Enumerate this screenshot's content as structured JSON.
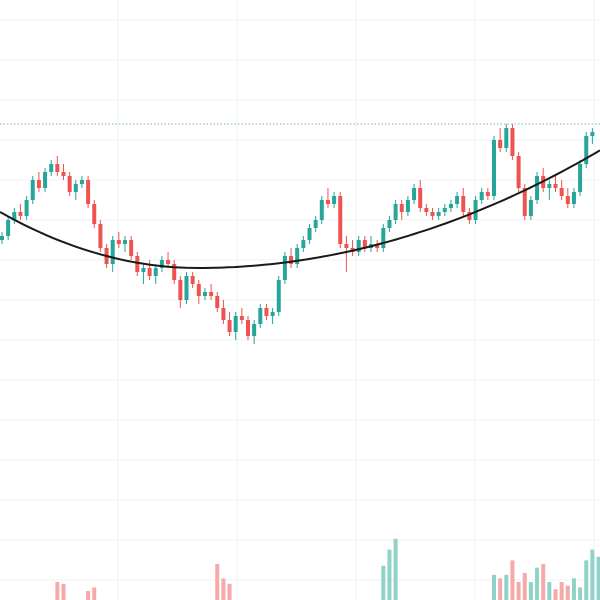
{
  "chart_data": {
    "type": "candlestick",
    "grid": true,
    "colors": {
      "up": "#26a69a",
      "down": "#ef5350",
      "volume_up": "#8fd3c8",
      "volume_down": "#f5a9a8",
      "curve": "#1a1a1a",
      "resistance": "#7fb3c4",
      "grid": "#eef0f3"
    },
    "ylim": [
      0,
      100
    ],
    "volume_ylim": [
      0,
      100
    ],
    "resistance_level": 74,
    "cup_curve": {
      "x": [
        0,
        33,
        100
      ],
      "y": [
        52,
        38,
        67.4
      ]
    },
    "candles": [
      [
        45,
        47,
        44,
        46
      ],
      [
        46,
        51,
        45,
        50
      ],
      [
        50,
        53,
        49,
        52
      ],
      [
        52,
        54,
        50,
        51
      ],
      [
        51,
        56,
        50,
        55
      ],
      [
        55,
        61,
        54,
        60
      ],
      [
        60,
        62,
        57,
        58
      ],
      [
        58,
        63,
        57,
        62
      ],
      [
        62,
        65,
        61,
        64
      ],
      [
        64,
        66,
        61,
        62
      ],
      [
        62,
        64,
        60,
        61
      ],
      [
        61,
        62,
        56,
        57
      ],
      [
        57,
        60,
        55,
        59
      ],
      [
        59,
        61,
        58,
        60
      ],
      [
        60,
        61,
        53,
        54
      ],
      [
        54,
        55,
        48,
        49
      ],
      [
        49,
        50,
        42,
        43
      ],
      [
        43,
        44,
        38,
        39
      ],
      [
        39,
        46,
        37,
        45
      ],
      [
        45,
        47,
        43,
        44
      ],
      [
        44,
        46,
        42,
        45
      ],
      [
        45,
        46,
        40,
        41
      ],
      [
        41,
        42,
        36,
        37
      ],
      [
        37,
        39,
        34,
        38
      ],
      [
        38,
        40,
        35,
        36
      ],
      [
        36,
        39,
        34,
        38
      ],
      [
        38,
        41,
        37,
        40
      ],
      [
        40,
        42,
        38,
        39
      ],
      [
        39,
        40,
        34,
        35
      ],
      [
        35,
        36,
        28,
        30
      ],
      [
        30,
        37,
        29,
        36
      ],
      [
        36,
        37,
        33,
        34
      ],
      [
        34,
        35,
        29,
        31
      ],
      [
        31,
        33,
        30,
        32
      ],
      [
        32,
        34,
        30,
        31
      ],
      [
        31,
        32,
        27,
        28
      ],
      [
        28,
        30,
        24,
        25
      ],
      [
        25,
        27,
        21,
        22
      ],
      [
        22,
        27,
        20,
        26
      ],
      [
        26,
        28,
        24,
        25
      ],
      [
        25,
        26,
        20,
        21
      ],
      [
        21,
        25,
        19,
        24
      ],
      [
        24,
        29,
        23,
        28
      ],
      [
        28,
        29,
        25,
        26
      ],
      [
        26,
        28,
        24,
        27
      ],
      [
        27,
        36,
        26,
        35
      ],
      [
        35,
        42,
        34,
        41
      ],
      [
        41,
        43,
        38,
        39
      ],
      [
        39,
        44,
        38,
        43
      ],
      [
        43,
        46,
        42,
        45
      ],
      [
        45,
        49,
        44,
        48
      ],
      [
        48,
        51,
        47,
        50
      ],
      [
        50,
        56,
        49,
        55
      ],
      [
        55,
        58,
        53,
        54
      ],
      [
        54,
        57,
        53,
        56
      ],
      [
        56,
        57,
        43,
        44
      ],
      [
        44,
        46,
        37,
        43
      ],
      [
        43,
        45,
        41,
        42
      ],
      [
        42,
        46,
        41,
        45
      ],
      [
        45,
        46,
        42,
        43
      ],
      [
        43,
        46,
        42,
        44
      ],
      [
        44,
        45,
        42,
        43
      ],
      [
        43,
        49,
        42,
        48
      ],
      [
        48,
        51,
        47,
        50
      ],
      [
        50,
        55,
        49,
        54
      ],
      [
        54,
        55,
        50,
        52
      ],
      [
        52,
        56,
        51,
        55
      ],
      [
        55,
        59,
        54,
        58
      ],
      [
        58,
        60,
        52,
        53
      ],
      [
        53,
        54,
        51,
        52
      ],
      [
        52,
        53,
        50,
        51
      ],
      [
        51,
        53,
        50,
        52
      ],
      [
        52,
        54,
        51,
        53
      ],
      [
        53,
        55,
        52,
        54
      ],
      [
        54,
        57,
        53,
        56
      ],
      [
        56,
        58,
        51,
        52
      ],
      [
        52,
        53,
        49,
        50
      ],
      [
        50,
        56,
        49,
        55
      ],
      [
        55,
        58,
        54,
        57
      ],
      [
        57,
        58,
        55,
        56
      ],
      [
        56,
        71,
        55,
        70
      ],
      [
        70,
        73,
        67,
        68
      ],
      [
        68,
        74,
        67,
        73
      ],
      [
        73,
        74,
        65,
        66
      ],
      [
        66,
        67,
        57,
        58
      ],
      [
        58,
        59,
        50,
        51
      ],
      [
        51,
        56,
        50,
        55
      ],
      [
        55,
        62,
        54,
        61
      ],
      [
        61,
        63,
        57,
        58
      ],
      [
        58,
        60,
        55,
        59
      ],
      [
        59,
        61,
        57,
        58
      ],
      [
        58,
        60,
        55,
        56
      ],
      [
        56,
        58,
        53,
        54
      ],
      [
        54,
        58,
        53,
        57
      ],
      [
        57,
        65,
        56,
        64
      ],
      [
        64,
        72,
        63,
        71
      ],
      [
        71,
        73,
        69,
        72
      ]
    ],
    "volume": [
      0,
      0,
      0,
      0,
      0,
      0,
      0,
      0,
      0,
      10,
      9,
      0,
      0,
      0,
      5,
      7,
      0,
      0,
      0,
      0,
      0,
      0,
      0,
      0,
      0,
      0,
      0,
      0,
      0,
      0,
      0,
      0,
      0,
      0,
      0,
      0,
      0,
      0,
      0,
      0,
      0,
      0,
      0,
      0,
      0,
      0,
      0,
      0,
      0,
      0,
      0,
      0,
      0,
      0,
      0,
      0,
      0,
      0,
      0,
      0,
      0,
      0,
      0,
      0,
      0,
      0,
      0,
      0,
      0,
      0,
      0,
      0,
      0,
      0,
      0,
      0,
      0,
      0,
      0,
      0,
      14,
      12,
      14,
      22,
      10,
      15,
      10,
      18,
      20,
      10,
      6,
      10,
      8,
      12,
      7,
      22,
      28,
      24
    ],
    "volume_extra": [
      [
        35,
        20
      ],
      [
        36,
        12
      ],
      [
        37,
        9
      ],
      [
        62,
        19
      ],
      [
        63,
        28
      ],
      [
        64,
        34
      ]
    ]
  }
}
